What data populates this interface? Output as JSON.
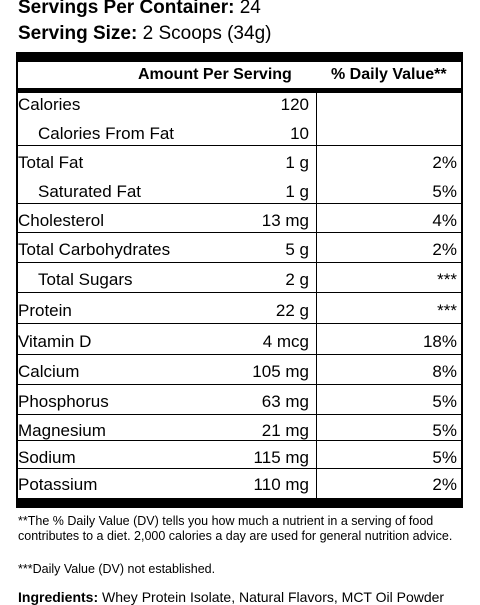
{
  "servings": {
    "per_container_label": "Servings Per Container:",
    "per_container_value": "24",
    "size_label": "Serving Size:",
    "size_value": "2 Scoops (34g)"
  },
  "header": {
    "amount_label": "Amount Per Serving",
    "dv_label": "% Daily Value**"
  },
  "rows": [
    {
      "name": "Calories",
      "amount": "120",
      "dv": ""
    },
    {
      "name": "Calories From Fat",
      "amount": "10",
      "dv": ""
    },
    {
      "name": "Total Fat",
      "amount": "1 g",
      "dv": "2%"
    },
    {
      "name": "Saturated Fat",
      "amount": "1 g",
      "dv": "5%"
    },
    {
      "name": "Cholesterol",
      "amount": "13 mg",
      "dv": "4%"
    },
    {
      "name": "Total Carbohydrates",
      "amount": "5 g",
      "dv": "2%"
    },
    {
      "name": "Total Sugars",
      "amount": "2 g",
      "dv": "***"
    },
    {
      "name": "Protein",
      "amount": "22 g",
      "dv": "***"
    },
    {
      "name": "Vitamin D",
      "amount": "4 mcg",
      "dv": "18%"
    },
    {
      "name": "Calcium",
      "amount": "105 mg",
      "dv": "8%"
    },
    {
      "name": "Phosphorus",
      "amount": "63 mg",
      "dv": "5%"
    },
    {
      "name": "Magnesium",
      "amount": "21 mg",
      "dv": "5%"
    },
    {
      "name": "Sodium",
      "amount": "115 mg",
      "dv": "5%"
    },
    {
      "name": "Potassium",
      "amount": "110 mg",
      "dv": "2%"
    }
  ],
  "footnotes": {
    "dv_note": "**The % Daily Value (DV) tells you how much a nutrient in a serving of food contributes to a diet. 2,000 calories a day are used for general nutrition advice.",
    "not_established": "***Daily Value (DV) not established."
  },
  "ingredients": {
    "label": "Ingredients:",
    "text": "Whey Protein Isolate, Natural Flavors, MCT Oil Powder"
  }
}
